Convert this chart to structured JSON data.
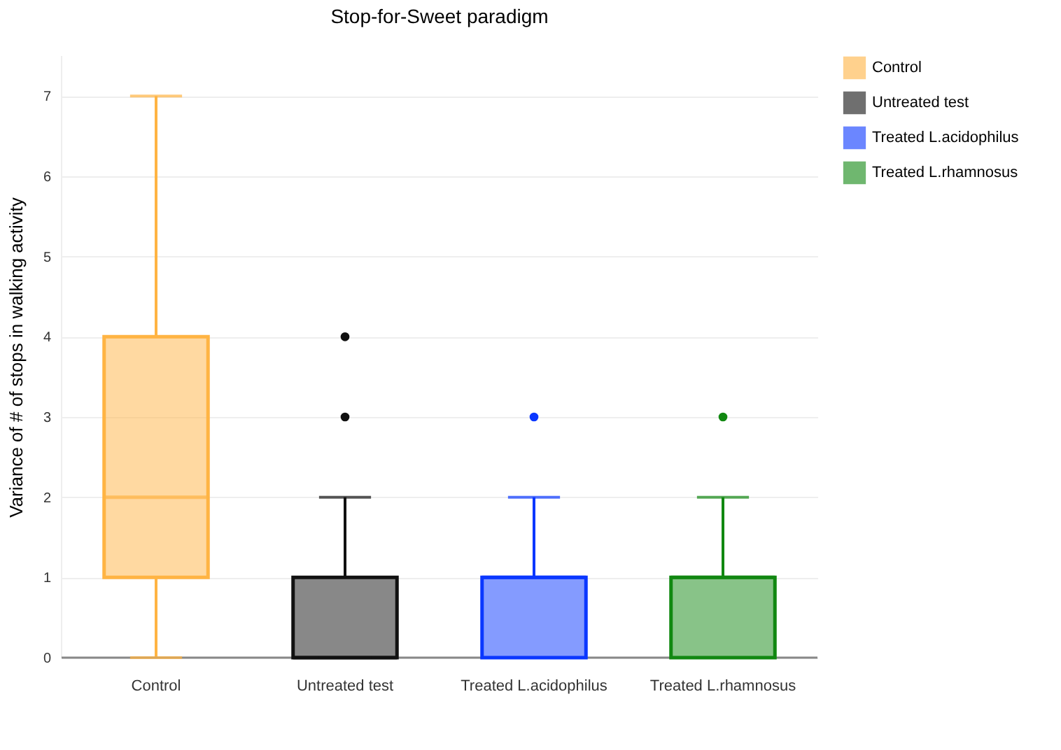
{
  "chart_data": {
    "type": "box",
    "title": "Stop-for-Sweet paradigm",
    "ylabel": "Variance of # of stops in walking activity",
    "categories": [
      "Control",
      "Untreated test",
      "Treated L.acidophilus",
      "Treated L.rhamnosus"
    ],
    "series": [
      {
        "name": "Control",
        "color": "#ffb443",
        "boxes": [
          {
            "low": 0,
            "q1": 1,
            "median": 2,
            "q3": 4,
            "high": 7
          },
          null,
          null,
          null
        ]
      },
      {
        "name": "Untreated test",
        "color": "#111111",
        "boxes": [
          null,
          {
            "low": 0,
            "q1": 0,
            "median": 0,
            "q3": 1,
            "high": 2,
            "outliers": [
              3,
              4
            ]
          },
          null,
          null
        ]
      },
      {
        "name": "Treated L.acidophilus",
        "color": "#0a37ff",
        "boxes": [
          null,
          null,
          {
            "low": 0,
            "q1": 0,
            "median": 1,
            "q3": 1,
            "high": 2,
            "outliers": [
              3
            ]
          },
          null
        ]
      },
      {
        "name": "Treated L.rhamnosus",
        "color": "#118811",
        "boxes": [
          null,
          null,
          null,
          {
            "low": 0,
            "q1": 0,
            "median": 1,
            "q3": 1,
            "high": 2,
            "outliers": [
              3
            ]
          }
        ]
      }
    ],
    "ylim": [
      0,
      7.5
    ],
    "yticks": [
      0,
      1,
      2,
      3,
      4,
      5,
      6,
      7
    ],
    "grid": "y",
    "legend": "top right"
  }
}
